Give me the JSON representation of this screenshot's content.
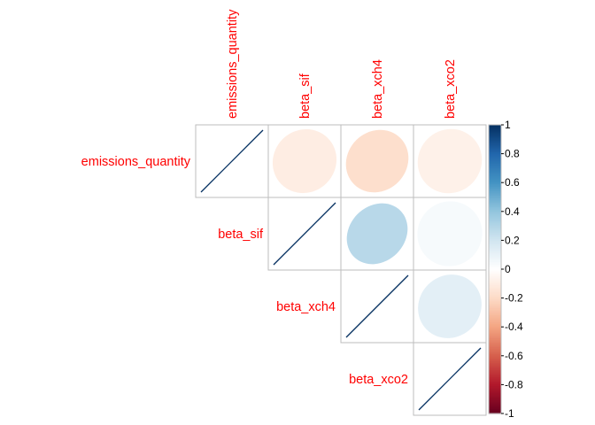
{
  "chart_data": {
    "type": "heatmap",
    "style": "correlation-ellipse-upper",
    "title": "",
    "variables": [
      "emissions_quantity",
      "beta_sif",
      "beta_xch4",
      "beta_xco2"
    ],
    "matrix": [
      [
        1.0,
        -0.1,
        -0.18,
        -0.08
      ],
      [
        -0.1,
        1.0,
        0.28,
        0.04
      ],
      [
        -0.18,
        0.28,
        1.0,
        0.12
      ],
      [
        -0.08,
        0.04,
        0.12,
        1.0
      ]
    ],
    "label_color": "#ff0000",
    "colorbar": {
      "range": [
        -1,
        1
      ],
      "ticks": [
        "-1",
        "-0.8",
        "-0.6",
        "-0.4",
        "-0.2",
        "0",
        "0.2",
        "0.4",
        "0.6",
        "0.8",
        "1"
      ],
      "tick_values": [
        -1,
        -0.8,
        -0.6,
        -0.4,
        -0.2,
        0,
        0.2,
        0.4,
        0.6,
        0.8,
        1
      ],
      "colors": [
        "#67001F",
        "#B2182B",
        "#D6604D",
        "#F4A582",
        "#FDDBC7",
        "#FFFFFF",
        "#D1E5F0",
        "#92C5DE",
        "#4393C3",
        "#2166AC",
        "#053061"
      ]
    },
    "grid": true,
    "legend_position": "right"
  }
}
